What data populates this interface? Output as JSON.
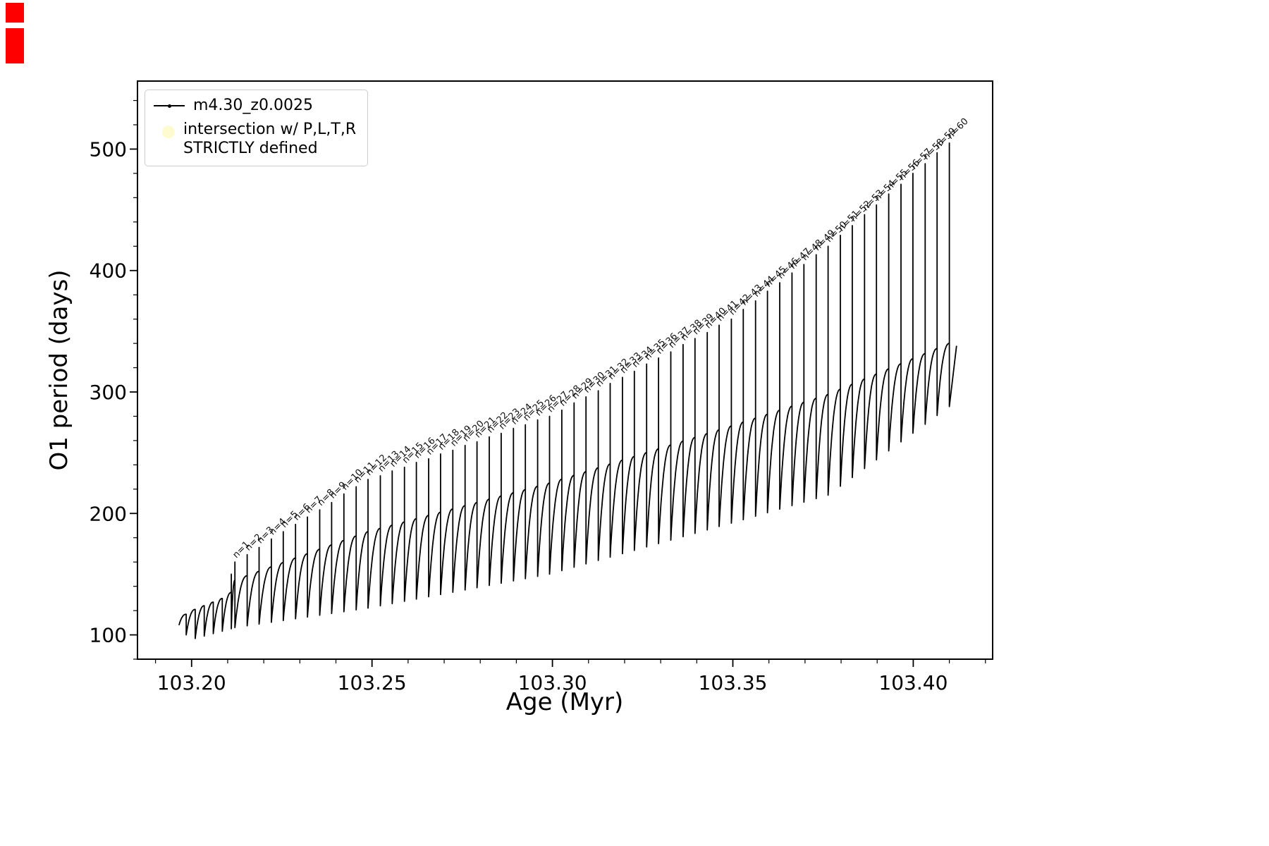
{
  "artifacts": {
    "color": "#fe0000"
  },
  "chart_data": {
    "type": "line",
    "title": "",
    "xlabel": "Age (Myr)",
    "ylabel": "O1 period (days)",
    "xlim": [
      103.185,
      103.422
    ],
    "ylim": [
      80,
      556
    ],
    "xticks": [
      103.2,
      103.25,
      103.3,
      103.35,
      103.4
    ],
    "yticks": [
      100,
      200,
      300,
      400,
      500
    ],
    "grid": false,
    "legend_position": "upper-left",
    "legend": [
      {
        "label": "m4.30_z0.0025",
        "marker": "line-dot",
        "color": "#000000"
      },
      {
        "label_line1": "intersection w/ P,L,T,R",
        "label_line2": "STRICTLY defined",
        "marker": "circle",
        "color": "#fffbd0"
      }
    ],
    "series_name": "m4.30_z0.0025",
    "series_color": "#000000",
    "start": {
      "age": 103.1965,
      "period": 108
    },
    "end": {
      "age": 103.412,
      "period": 338
    },
    "hump_envelope": [
      [
        103.212,
        145
      ],
      [
        103.2489,
        185
      ],
      [
        103.2992,
        225
      ],
      [
        103.3496,
        272
      ],
      [
        103.3764,
        298
      ],
      [
        103.41,
        340
      ]
    ],
    "lower_envelope": [
      [
        103.212,
        106
      ],
      [
        103.2489,
        122
      ],
      [
        103.2992,
        150
      ],
      [
        103.3496,
        192
      ],
      [
        103.3764,
        215
      ],
      [
        103.41,
        288
      ]
    ],
    "pulses": [
      {
        "n": null,
        "age": 103.1985,
        "peak": 117,
        "hump": 117,
        "dip": 100
      },
      {
        "n": null,
        "age": 103.201,
        "peak": 121,
        "hump": 121,
        "dip": 97
      },
      {
        "n": null,
        "age": 103.2035,
        "peak": 124,
        "hump": 124,
        "dip": 99
      },
      {
        "n": null,
        "age": 103.206,
        "peak": 127,
        "hump": 127,
        "dip": 101
      },
      {
        "n": null,
        "age": 103.2085,
        "peak": 130,
        "hump": 130,
        "dip": 103
      },
      {
        "n": null,
        "age": 103.211,
        "peak": 150,
        "hump": 135,
        "dip": 105
      },
      {
        "n": 1,
        "age": 103.212,
        "peak": 160
      },
      {
        "n": 2,
        "age": 103.2154,
        "peak": 166
      },
      {
        "n": 3,
        "age": 103.2187,
        "peak": 172
      },
      {
        "n": 4,
        "age": 103.2221,
        "peak": 179
      },
      {
        "n": 5,
        "age": 103.2254,
        "peak": 185
      },
      {
        "n": 6,
        "age": 103.2288,
        "peak": 191
      },
      {
        "n": 7,
        "age": 103.2321,
        "peak": 197
      },
      {
        "n": 8,
        "age": 103.2355,
        "peak": 203
      },
      {
        "n": 9,
        "age": 103.2388,
        "peak": 209
      },
      {
        "n": 10,
        "age": 103.2422,
        "peak": 216
      },
      {
        "n": 11,
        "age": 103.2456,
        "peak": 222
      },
      {
        "n": 12,
        "age": 103.2489,
        "peak": 228
      },
      {
        "n": 13,
        "age": 103.2523,
        "peak": 231
      },
      {
        "n": 14,
        "age": 103.2556,
        "peak": 235
      },
      {
        "n": 15,
        "age": 103.259,
        "peak": 238
      },
      {
        "n": 16,
        "age": 103.2623,
        "peak": 242
      },
      {
        "n": 17,
        "age": 103.2657,
        "peak": 245
      },
      {
        "n": 18,
        "age": 103.269,
        "peak": 249
      },
      {
        "n": 19,
        "age": 103.2724,
        "peak": 252
      },
      {
        "n": 20,
        "age": 103.2758,
        "peak": 256
      },
      {
        "n": 21,
        "age": 103.2791,
        "peak": 259
      },
      {
        "n": 22,
        "age": 103.2825,
        "peak": 263
      },
      {
        "n": 23,
        "age": 103.2858,
        "peak": 266
      },
      {
        "n": 24,
        "age": 103.2892,
        "peak": 270
      },
      {
        "n": 25,
        "age": 103.2925,
        "peak": 273
      },
      {
        "n": 26,
        "age": 103.2959,
        "peak": 277
      },
      {
        "n": 27,
        "age": 103.2992,
        "peak": 280
      },
      {
        "n": 28,
        "age": 103.3026,
        "peak": 285
      },
      {
        "n": 29,
        "age": 103.306,
        "peak": 291
      },
      {
        "n": 30,
        "age": 103.3093,
        "peak": 296
      },
      {
        "n": 31,
        "age": 103.3127,
        "peak": 301
      },
      {
        "n": 32,
        "age": 103.316,
        "peak": 307
      },
      {
        "n": 33,
        "age": 103.3194,
        "peak": 312
      },
      {
        "n": 34,
        "age": 103.3227,
        "peak": 317
      },
      {
        "n": 35,
        "age": 103.3261,
        "peak": 323
      },
      {
        "n": 36,
        "age": 103.3294,
        "peak": 328
      },
      {
        "n": 37,
        "age": 103.3328,
        "peak": 333
      },
      {
        "n": 38,
        "age": 103.3362,
        "peak": 339
      },
      {
        "n": 39,
        "age": 103.3395,
        "peak": 344
      },
      {
        "n": 40,
        "age": 103.3429,
        "peak": 349
      },
      {
        "n": 41,
        "age": 103.3462,
        "peak": 355
      },
      {
        "n": 42,
        "age": 103.3496,
        "peak": 360
      },
      {
        "n": 43,
        "age": 103.3529,
        "peak": 368
      },
      {
        "n": 44,
        "age": 103.3563,
        "peak": 375
      },
      {
        "n": 45,
        "age": 103.3596,
        "peak": 383
      },
      {
        "n": 46,
        "age": 103.363,
        "peak": 390
      },
      {
        "n": 47,
        "age": 103.3664,
        "peak": 398
      },
      {
        "n": 48,
        "age": 103.3697,
        "peak": 405
      },
      {
        "n": 49,
        "age": 103.3731,
        "peak": 413
      },
      {
        "n": 50,
        "age": 103.3764,
        "peak": 420
      },
      {
        "n": 51,
        "age": 103.3798,
        "peak": 429
      },
      {
        "n": 52,
        "age": 103.3831,
        "peak": 437
      },
      {
        "n": 53,
        "age": 103.3865,
        "peak": 446
      },
      {
        "n": 54,
        "age": 103.3898,
        "peak": 454
      },
      {
        "n": 55,
        "age": 103.3932,
        "peak": 463
      },
      {
        "n": 56,
        "age": 103.3966,
        "peak": 471
      },
      {
        "n": 57,
        "age": 103.3999,
        "peak": 480
      },
      {
        "n": 58,
        "age": 103.4033,
        "peak": 488
      },
      {
        "n": 59,
        "age": 103.4066,
        "peak": 497
      },
      {
        "n": 60,
        "age": 103.41,
        "peak": 505
      }
    ],
    "pulse_label_prefix": "n="
  }
}
